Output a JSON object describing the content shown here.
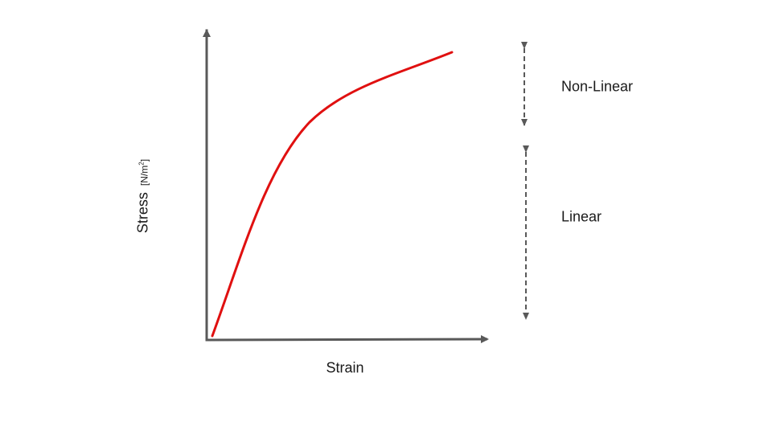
{
  "diagram": {
    "x_axis_label": "Strain",
    "y_axis_label": "Stress",
    "y_axis_unit_open": "[N/m",
    "y_axis_unit_exp": "2",
    "y_axis_unit_close": "]",
    "regions": {
      "nonlinear": "Non-Linear",
      "linear": "Linear"
    },
    "colors": {
      "axis": "#595959",
      "curve": "#e01010",
      "arrow": "#595959",
      "text": "#1a1a1a"
    }
  }
}
